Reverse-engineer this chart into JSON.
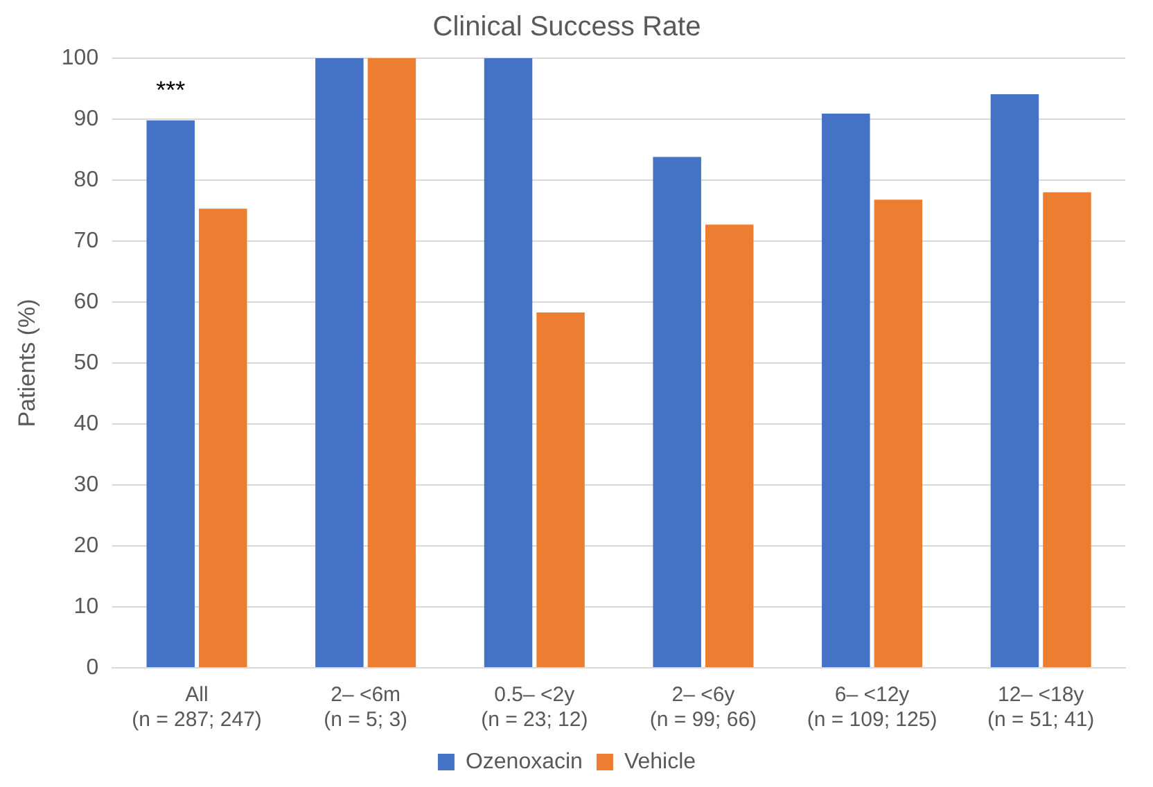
{
  "chart_data": {
    "type": "bar",
    "title": "Clinical Success Rate",
    "ylabel": "Patients (%)",
    "categories": [
      "All\n(n = 287; 247)",
      "2– <6m\n(n = 5; 3)",
      "0.5– <2y\n(n = 23; 12)",
      "2– <6y\n(n = 99; 66)",
      "6– <12y\n(n = 109; 125)",
      "12– <18y\n(n = 51; 41)"
    ],
    "series": [
      {
        "name": "Ozenoxacin",
        "color": "#4472c4",
        "values": [
          89.8,
          100,
          100,
          83.8,
          90.9,
          94.1
        ]
      },
      {
        "name": "Vehicle",
        "color": "#ed7d31",
        "values": [
          75.3,
          100,
          58.3,
          72.7,
          76.8,
          78
        ]
      }
    ],
    "ylim": [
      0,
      100
    ],
    "yticks": [
      0,
      10,
      20,
      30,
      40,
      50,
      60,
      70,
      80,
      90,
      100
    ],
    "grid": "y",
    "legend": "bottom",
    "annotations": [
      {
        "text": "***",
        "x": "All\n(n = 287; 247)",
        "y": 89.8
      }
    ]
  }
}
